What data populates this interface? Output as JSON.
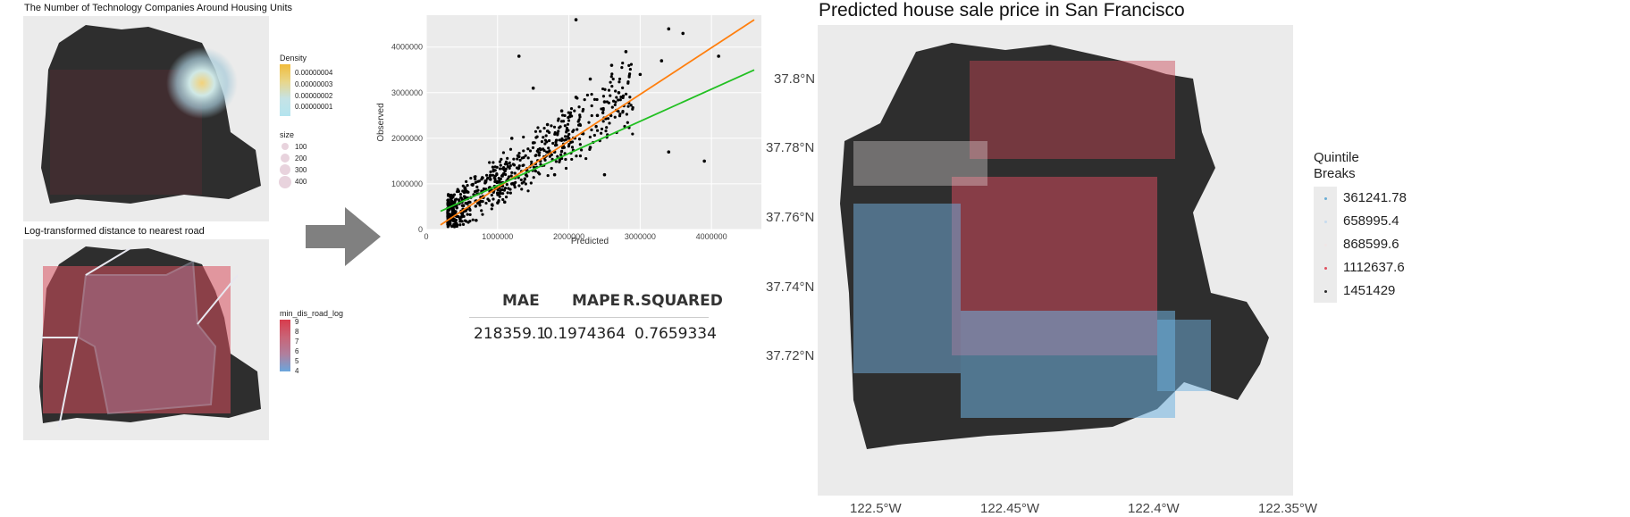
{
  "panel1": {
    "title": "The Number of Technology Companies Around Housing Units",
    "legend_density_title": "Density",
    "density_ticks": [
      "0.00000004",
      "0.00000003",
      "0.00000002",
      "0.00000001"
    ],
    "legend_size_title": "size",
    "size_ticks": [
      "100",
      "200",
      "300",
      "400"
    ]
  },
  "panel2": {
    "title": "Log-transformed distance to nearest road",
    "legend_title": "min_dis_road_log",
    "ticks": [
      "9",
      "8",
      "7",
      "6",
      "5",
      "4"
    ]
  },
  "arrow": {
    "icon": "arrow-right-icon",
    "color": "#808080"
  },
  "metrics": {
    "headers": [
      "MAE",
      "MAPE",
      "R.SQUARED"
    ],
    "values": [
      "218359.1",
      "0.1974364",
      "0.7659334"
    ]
  },
  "map3": {
    "title": "Predicted house sale price in San Francisco",
    "lat_ticks": [
      "37.8°N",
      "37.78°N",
      "37.76°N",
      "37.74°N",
      "37.72°N"
    ],
    "lon_ticks": [
      "122.5°W",
      "122.45°W",
      "122.4°W",
      "122.35°W"
    ],
    "legend_title_1": "Quintile",
    "legend_title_2": "Breaks",
    "breaks": [
      "361241.78",
      "658995.4",
      "868599.6",
      "1112637.6",
      "1451429"
    ],
    "break_colors": [
      "#6baed6",
      "#c6dbef",
      "#f0e6e6",
      "#e04f5f",
      "#2b2b2b"
    ]
  },
  "chart_data": {
    "type": "scatter",
    "title": "",
    "xlabel": "Predicted",
    "ylabel": "Observed",
    "xlim": [
      0,
      4700000
    ],
    "ylim": [
      0,
      4700000
    ],
    "x_ticks": [
      0,
      1000000,
      2000000,
      3000000,
      4000000
    ],
    "y_ticks": [
      0,
      1000000,
      2000000,
      3000000,
      4000000
    ],
    "grid": true,
    "points_summary": "dense cloud of black points concentrated between 300000 and 2000000",
    "sample_points": [
      [
        400000,
        300000
      ],
      [
        600000,
        500000
      ],
      [
        800000,
        700000
      ],
      [
        900000,
        1100000
      ],
      [
        1000000,
        800000
      ],
      [
        1100000,
        1300000
      ],
      [
        1200000,
        1000000
      ],
      [
        1300000,
        1600000
      ],
      [
        1400000,
        1200000
      ],
      [
        1500000,
        1900000
      ],
      [
        1600000,
        1500000
      ],
      [
        1700000,
        2300000
      ],
      [
        1800000,
        1700000
      ],
      [
        1900000,
        2600000
      ],
      [
        2000000,
        2000000
      ],
      [
        2100000,
        2900000
      ],
      [
        2200000,
        2100000
      ],
      [
        2300000,
        3300000
      ],
      [
        2400000,
        2500000
      ],
      [
        2500000,
        2800000
      ],
      [
        2600000,
        3600000
      ],
      [
        2700000,
        3000000
      ],
      [
        2800000,
        3900000
      ],
      [
        3000000,
        3400000
      ],
      [
        3300000,
        3700000
      ],
      [
        3400000,
        4400000
      ],
      [
        3600000,
        4300000
      ],
      [
        3900000,
        1500000
      ],
      [
        4100000,
        3800000
      ],
      [
        2100000,
        4600000
      ],
      [
        1300000,
        3800000
      ],
      [
        1500000,
        3100000
      ],
      [
        2500000,
        1200000
      ],
      [
        3400000,
        1700000
      ],
      [
        700000,
        200000
      ],
      [
        500000,
        600000
      ],
      [
        1100000,
        600000
      ],
      [
        1800000,
        1200000
      ],
      [
        2300000,
        1800000
      ],
      [
        1200000,
        2000000
      ]
    ],
    "series": [
      {
        "name": "",
        "type": "line",
        "color": "#ff7f0e",
        "points": [
          [
            200000,
            100000
          ],
          [
            4600000,
            4600000
          ]
        ]
      },
      {
        "name": "",
        "type": "line",
        "color": "#22c022",
        "points": [
          [
            200000,
            400000
          ],
          [
            4600000,
            3500000
          ]
        ]
      }
    ]
  }
}
